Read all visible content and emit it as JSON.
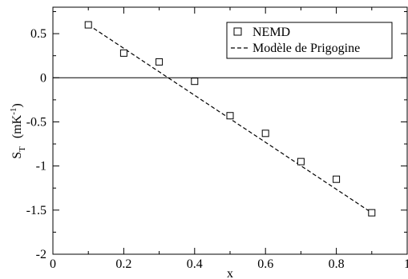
{
  "chart_data": {
    "type": "scatter",
    "xlabel": "x",
    "ylabel": "S",
    "ylabel_subscript": "T",
    "ylabel_units": "(mK",
    "ylabel_units_superscript": "-1",
    "ylabel_units_close": ")",
    "xlim": [
      0,
      1
    ],
    "ylim": [
      -2,
      0.8
    ],
    "x_ticks": [
      0,
      0.2,
      0.4,
      0.6,
      0.8,
      1
    ],
    "x_tick_labels": [
      "0",
      "0.2",
      "0.4",
      "0.6",
      "0.8",
      "1"
    ],
    "y_ticks": [
      -2,
      -1.5,
      -1,
      -0.5,
      0,
      0.5
    ],
    "y_tick_labels": [
      "-2",
      "-1.5",
      "-1",
      "-0.5",
      "0",
      "0.5"
    ],
    "zero_line": 0,
    "grid": false,
    "legend_position": "top-right",
    "series": [
      {
        "name": "NEMD",
        "kind": "scatter",
        "marker": "open-square",
        "x": [
          0.1,
          0.2,
          0.3,
          0.4,
          0.5,
          0.6,
          0.7,
          0.8,
          0.9
        ],
        "y": [
          0.6,
          0.28,
          0.18,
          -0.04,
          -0.43,
          -0.63,
          -0.95,
          -1.15,
          -1.53
        ]
      },
      {
        "name": "Modèle de Prigogine",
        "kind": "line",
        "style": "dashed",
        "x": [
          0.1,
          0.9
        ],
        "y": [
          0.6,
          -1.53
        ]
      }
    ]
  }
}
